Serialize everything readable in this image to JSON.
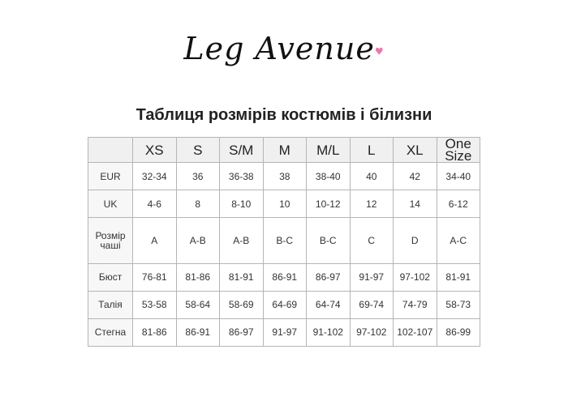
{
  "logo": {
    "text": "Leg Avenue",
    "tm": "™"
  },
  "title": "Таблиця розмірів костюмів і білизни",
  "table": {
    "headers": [
      "",
      "XS",
      "S",
      "S/M",
      "M",
      "M/L",
      "L",
      "XL",
      "One Size"
    ],
    "rows": [
      {
        "label": "EUR",
        "values": [
          "32-34",
          "36",
          "36-38",
          "38",
          "38-40",
          "40",
          "42",
          "34-40"
        ]
      },
      {
        "label": "UK",
        "values": [
          "4-6",
          "8",
          "8-10",
          "10",
          "10-12",
          "12",
          "14",
          "6-12"
        ]
      },
      {
        "label": "Розмір чаші",
        "values": [
          "A",
          "A-B",
          "A-B",
          "B-C",
          "B-C",
          "C",
          "D",
          "A-C"
        ]
      },
      {
        "label": "Бюст",
        "values": [
          "76-81",
          "81-86",
          "81-91",
          "86-91",
          "86-97",
          "91-97",
          "97-102",
          "81-91"
        ]
      },
      {
        "label": "Талія",
        "values": [
          "53-58",
          "58-64",
          "58-69",
          "64-69",
          "64-74",
          "69-74",
          "74-79",
          "58-73"
        ]
      },
      {
        "label": "Стегна",
        "values": [
          "81-86",
          "86-91",
          "86-97",
          "91-97",
          "91-102",
          "97-102",
          "102-107",
          "86-99"
        ]
      }
    ]
  },
  "colors": {
    "heart": "#e87aa8",
    "header_bg": "#f0f0f0",
    "border": "#b5b5b5"
  }
}
